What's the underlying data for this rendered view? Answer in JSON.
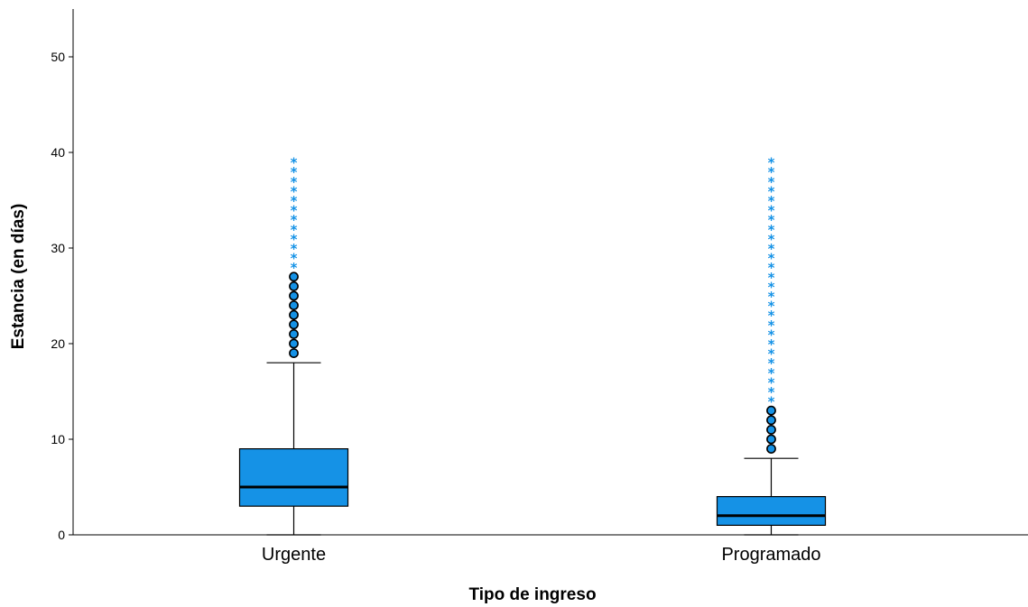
{
  "chart_data": {
    "type": "boxplot",
    "xlabel": "Tipo de ingreso",
    "ylabel": "Estancia (en días)",
    "ylim": [
      0,
      55
    ],
    "yticks": [
      0,
      10,
      20,
      30,
      40,
      50
    ],
    "grid": false,
    "legend": "none",
    "box_color": "#1592E6",
    "outlier_color": "#1592E6",
    "extreme_color": "#1592E6",
    "categories": [
      "Urgente",
      "Programado"
    ],
    "boxes": [
      {
        "category": "Urgente",
        "whisker_low": 0,
        "q1": 3,
        "median": 5,
        "q3": 9,
        "whisker_high": 18,
        "outliers": [
          19,
          20,
          21,
          22,
          23,
          24,
          25,
          26,
          27
        ],
        "extremes": [
          28,
          29,
          30,
          31,
          32,
          33,
          34,
          35,
          36,
          37,
          38,
          39
        ]
      },
      {
        "category": "Programado",
        "whisker_low": 0,
        "q1": 1,
        "median": 2,
        "q3": 4,
        "whisker_high": 8,
        "outliers": [
          9,
          10,
          11,
          12,
          13
        ],
        "extremes": [
          14,
          15,
          16,
          17,
          18,
          19,
          20,
          21,
          22,
          23,
          24,
          25,
          26,
          27,
          28,
          29,
          30,
          31,
          32,
          33,
          34,
          35,
          36,
          37,
          38,
          39
        ]
      }
    ]
  }
}
